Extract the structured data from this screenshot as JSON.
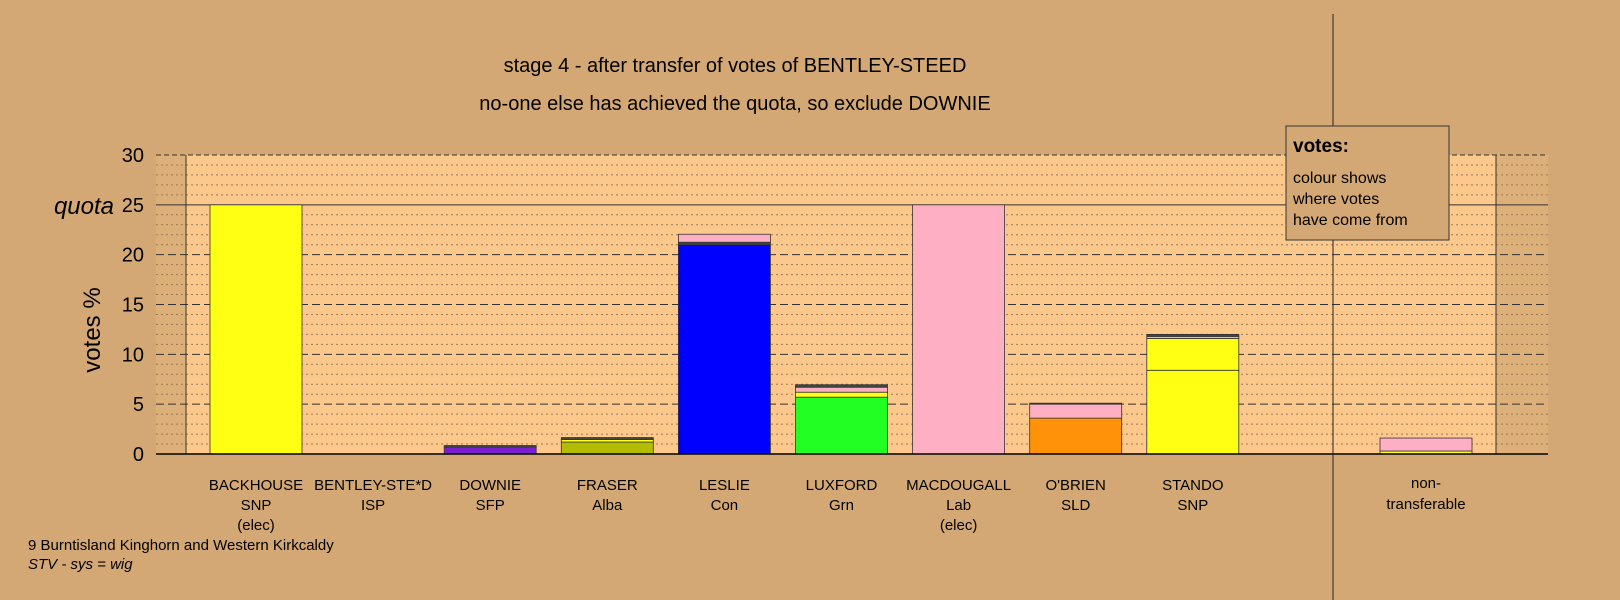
{
  "chart_data": {
    "type": "bar",
    "title": "stage 4 - after transfer of votes of BENTLEY-STEED",
    "subtitle": "no-one else has achieved the quota, so exclude DOWNIE",
    "ylabel": "votes %",
    "quota_label": "quota",
    "quota": 25,
    "ylim": [
      0,
      30
    ],
    "yticks": [
      0,
      5,
      10,
      15,
      20,
      25,
      30
    ],
    "grid": true,
    "legend": {
      "title": "votes:",
      "lines": [
        "colour shows",
        "where votes",
        "have come from"
      ],
      "placement": "top-right"
    },
    "footer": {
      "ward": "9 Burntisland Kinghorn and Western Kirkcaldy",
      "system": "STV - sys = wig"
    },
    "colors": {
      "background": "#d4a874",
      "plot_area": "#fcc88c",
      "SNP": "#ffff14",
      "ISP": "#444444",
      "SFP": "#7a1fd1",
      "Alba": "#b4bc00",
      "Con": "#0000ff",
      "Grn": "#22ff22",
      "Lab": "#ffafc4",
      "SLD": "#ff9208"
    },
    "categories": [
      {
        "name": "BACKHOUSE",
        "party": "SNP",
        "note": "(elec)",
        "segments": [
          {
            "from": "SNP",
            "value": 25.0
          }
        ]
      },
      {
        "name": "BENTLEY-STE*D",
        "party": "ISP",
        "note": "",
        "segments": []
      },
      {
        "name": "DOWNIE",
        "party": "SFP",
        "note": "",
        "segments": [
          {
            "from": "SFP",
            "value": 0.7
          },
          {
            "from": "ISP",
            "value": 0.15
          }
        ]
      },
      {
        "name": "FRASER",
        "party": "Alba",
        "note": "",
        "segments": [
          {
            "from": "Alba",
            "value": 1.2
          },
          {
            "from": "SNP",
            "value": 0.25
          },
          {
            "from": "ISP",
            "value": 0.2
          }
        ]
      },
      {
        "name": "LESLIE",
        "party": "Con",
        "note": "",
        "segments": [
          {
            "from": "Con",
            "value": 21.0
          },
          {
            "from": "ISP",
            "value": 0.25
          },
          {
            "from": "Lab",
            "value": 0.8
          }
        ]
      },
      {
        "name": "LUXFORD",
        "party": "Grn",
        "note": "",
        "segments": [
          {
            "from": "Grn",
            "value": 5.7
          },
          {
            "from": "SNP",
            "value": 0.5
          },
          {
            "from": "Lab",
            "value": 0.5
          },
          {
            "from": "ISP",
            "value": 0.25
          }
        ]
      },
      {
        "name": "MACDOUGALL",
        "party": "Lab",
        "note": "(elec)",
        "segments": [
          {
            "from": "Lab",
            "value": 25.0
          }
        ]
      },
      {
        "name": "O'BRIEN",
        "party": "SLD",
        "note": "",
        "segments": [
          {
            "from": "SLD",
            "value": 3.6
          },
          {
            "from": "Lab",
            "value": 1.4
          },
          {
            "from": "ISP",
            "value": 0.1
          }
        ]
      },
      {
        "name": "STANDO",
        "party": "SNP",
        "note": "",
        "segments": [
          {
            "from": "SNP",
            "value": 8.4
          },
          {
            "from": "SNP",
            "value": 3.2
          },
          {
            "from": "Lab",
            "value": 0.2
          },
          {
            "from": "ISP",
            "value": 0.2
          }
        ]
      }
    ],
    "nontransferable": {
      "label_lines": [
        "non-",
        "transferable"
      ],
      "segments": [
        {
          "from": "SNP",
          "value": 0.3
        },
        {
          "from": "Lab",
          "value": 1.3
        }
      ]
    }
  }
}
